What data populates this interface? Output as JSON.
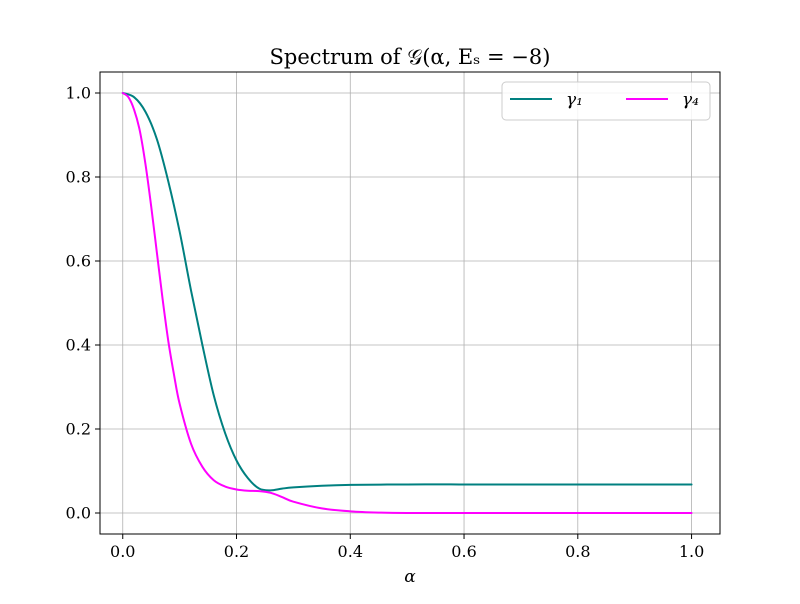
{
  "chart_data": {
    "type": "line",
    "title": "Spectrum of 𝒢(α, Eₛ = −8)",
    "xlabel": "α",
    "ylabel": "",
    "xlim": [
      -0.04,
      1.05
    ],
    "ylim": [
      -0.05,
      1.05
    ],
    "xticks": [
      0.0,
      0.2,
      0.4,
      0.6,
      0.8,
      1.0
    ],
    "yticks": [
      0.0,
      0.2,
      0.4,
      0.6,
      0.8,
      1.0
    ],
    "xtick_labels": [
      "0.0",
      "0.2",
      "0.4",
      "0.6",
      "0.8",
      "1.0"
    ],
    "ytick_labels": [
      "0.0",
      "0.2",
      "0.4",
      "0.6",
      "0.8",
      "1.0"
    ],
    "grid": true,
    "legend_position": "top-right",
    "legend_columns": 2,
    "series": [
      {
        "name": "γ₁",
        "color": "#008080",
        "x": [
          0.0,
          0.02,
          0.04,
          0.06,
          0.08,
          0.1,
          0.12,
          0.14,
          0.16,
          0.18,
          0.2,
          0.22,
          0.24,
          0.26,
          0.28,
          0.3,
          0.35,
          0.4,
          0.5,
          0.6,
          0.7,
          0.8,
          0.9,
          1.0
        ],
        "y": [
          1.0,
          0.99,
          0.955,
          0.89,
          0.79,
          0.67,
          0.53,
          0.4,
          0.28,
          0.19,
          0.125,
          0.083,
          0.058,
          0.054,
          0.058,
          0.061,
          0.065,
          0.067,
          0.068,
          0.068,
          0.068,
          0.068,
          0.068,
          0.068
        ]
      },
      {
        "name": "γ₄",
        "color": "#ff00ff",
        "x": [
          0.0,
          0.01,
          0.02,
          0.03,
          0.04,
          0.05,
          0.06,
          0.07,
          0.08,
          0.09,
          0.1,
          0.12,
          0.14,
          0.16,
          0.18,
          0.2,
          0.22,
          0.24,
          0.26,
          0.28,
          0.3,
          0.35,
          0.4,
          0.45,
          0.5,
          0.6,
          0.8,
          1.0
        ],
        "y": [
          1.0,
          0.99,
          0.96,
          0.91,
          0.83,
          0.73,
          0.62,
          0.51,
          0.41,
          0.33,
          0.26,
          0.165,
          0.11,
          0.078,
          0.063,
          0.056,
          0.053,
          0.052,
          0.048,
          0.038,
          0.027,
          0.011,
          0.004,
          0.001,
          0.0,
          0.0,
          0.0,
          0.0
        ]
      }
    ]
  }
}
